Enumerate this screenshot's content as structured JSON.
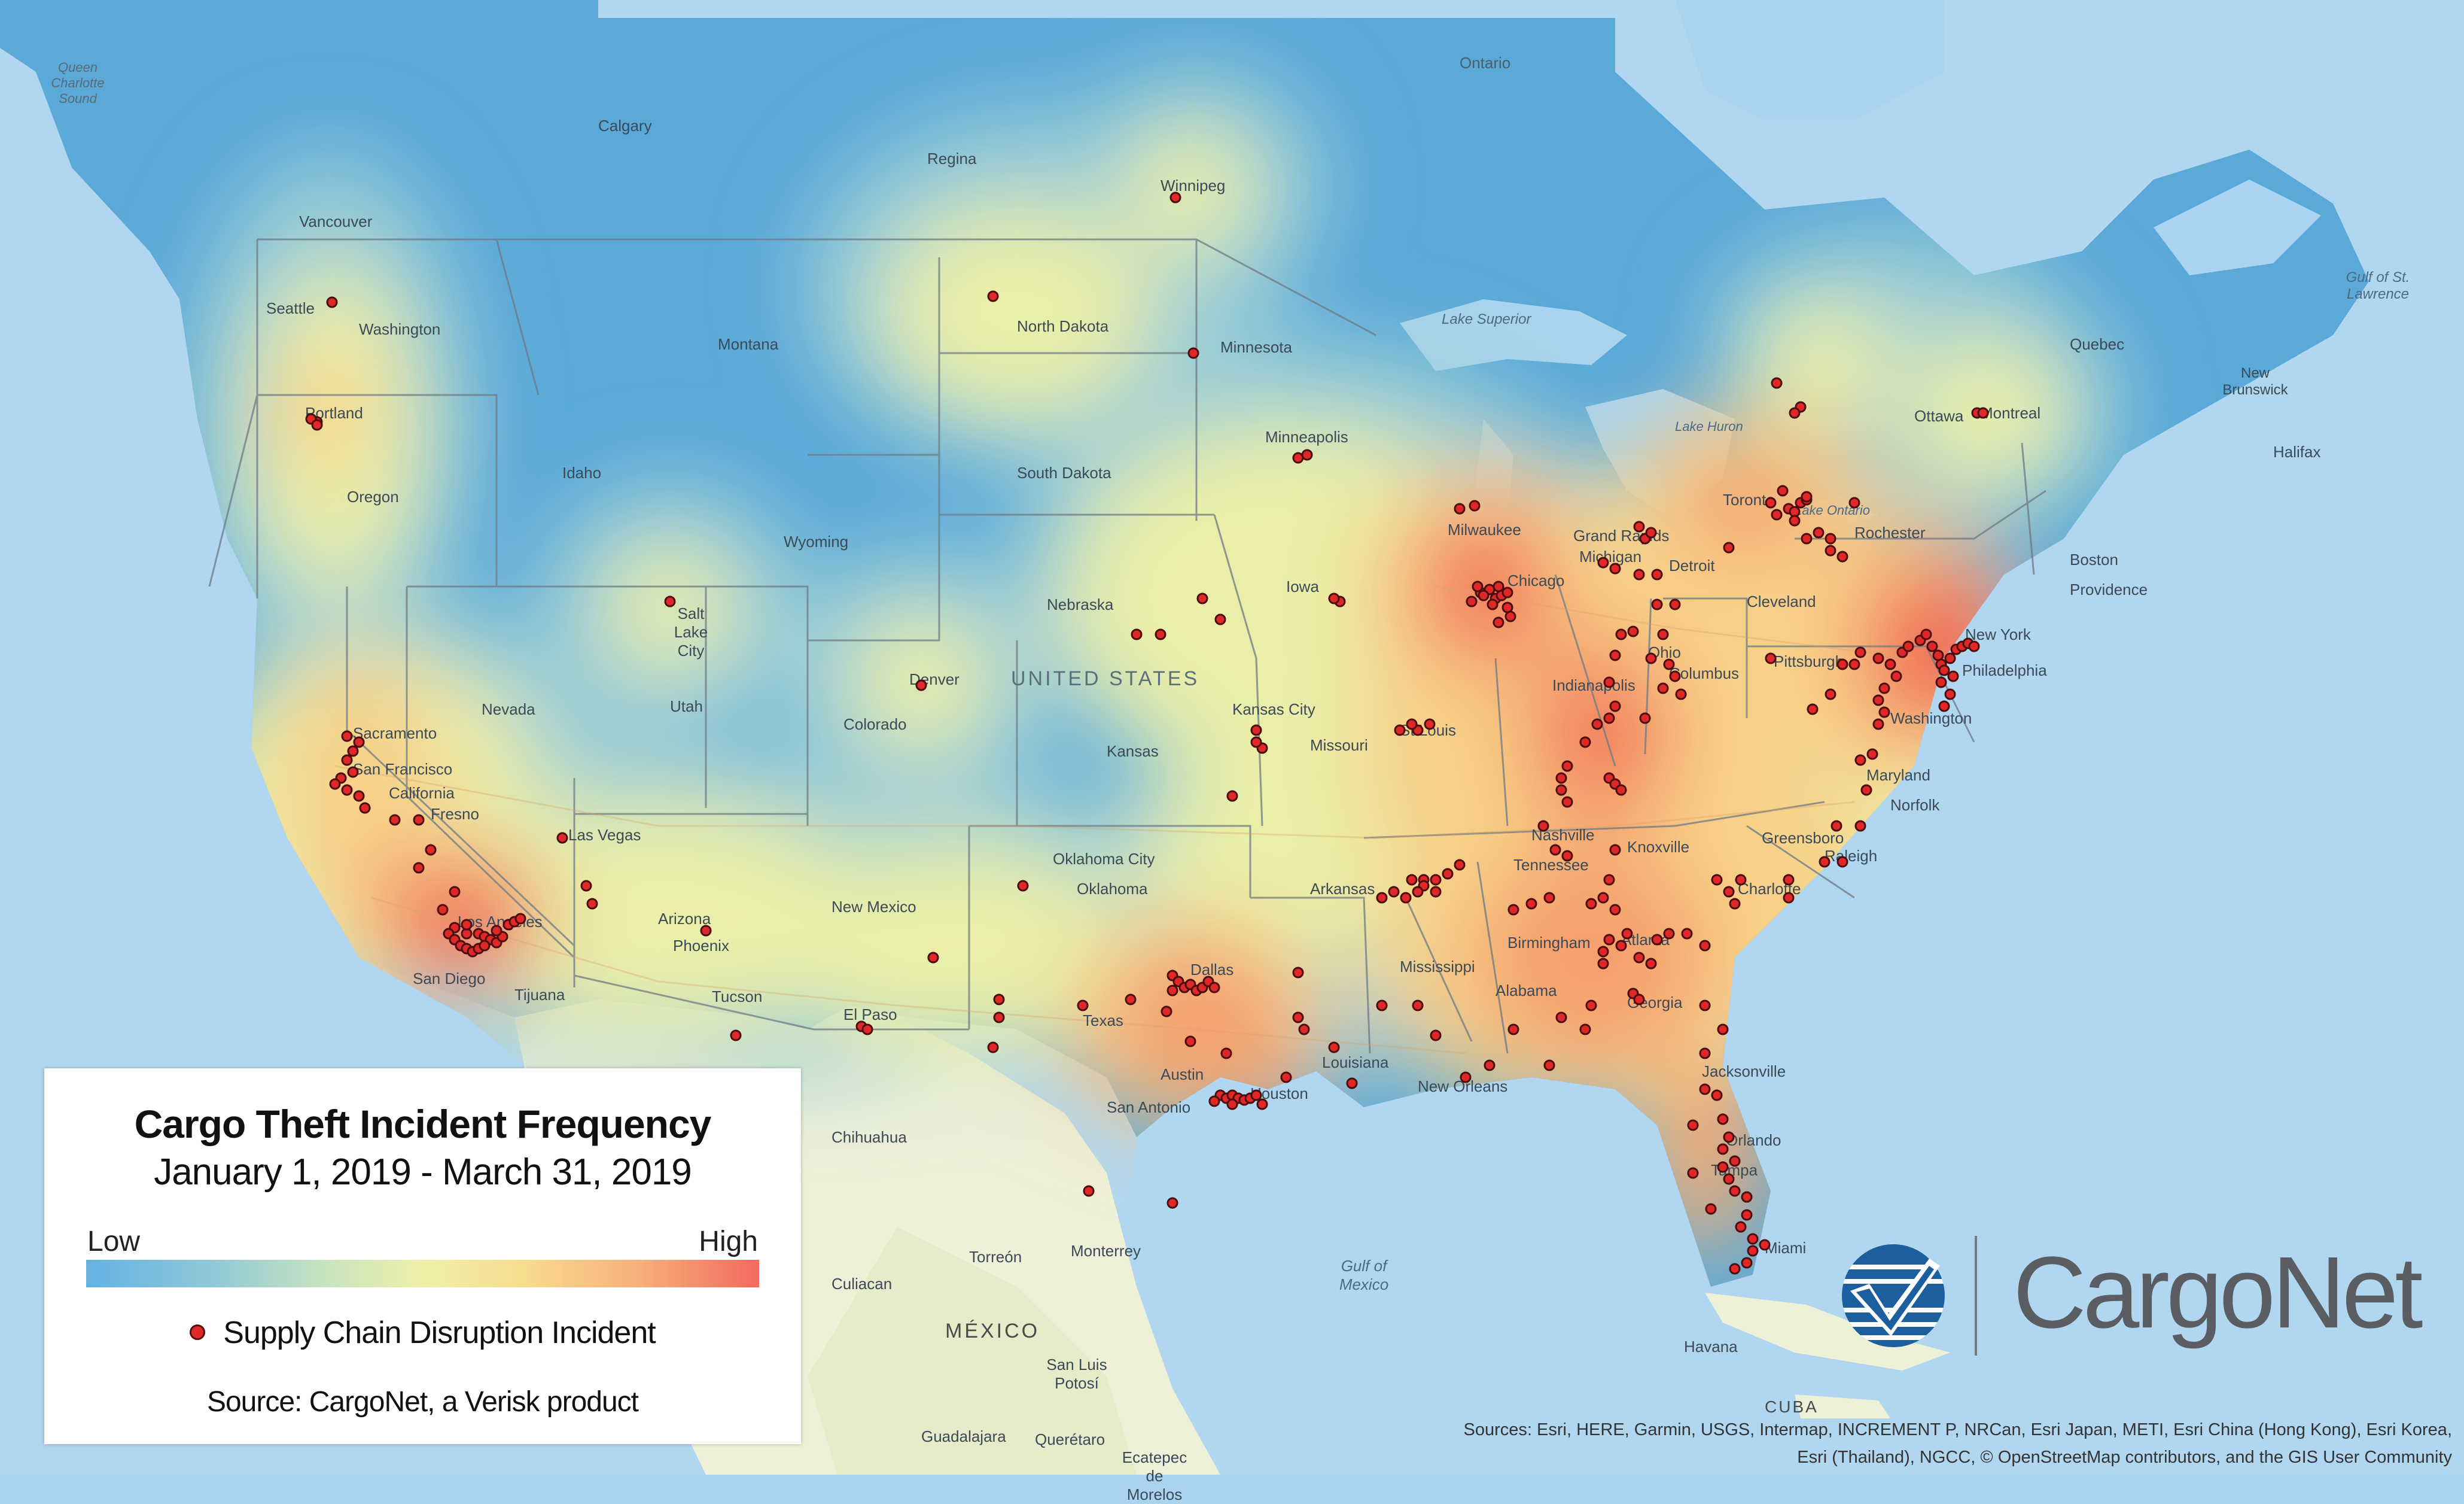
{
  "legend": {
    "title": "Cargo Theft  Incident Frequency",
    "subtitle": "January 1, 2019 - March 31, 2019",
    "low_label": "Low",
    "high_label": "High",
    "incident_label": "Supply Chain Disruption Incident",
    "source": "Source: CargoNet, a Verisk product"
  },
  "logo": {
    "text": "CargoNet"
  },
  "attribution": "Sources: Esri, HERE, Garmin, USGS, Intermap, INCREMENT P, NRCan, Esri Japan, METI, Esri China (Hong Kong), Esri Korea, Esri (Thailand), NGCC, © OpenStreetMap contributors, and the GIS User Community",
  "colors": {
    "ocean": "#a9d3ee",
    "land_low": "#5aa9d8",
    "heat_high": "#f05a4f",
    "incident_dot": "#e02828"
  },
  "map_labels": {
    "queen_charlotte": "Queen Charlotte Sound",
    "calgary": "Calgary",
    "regina": "Regina",
    "winnipeg": "Winnipeg",
    "ontario": "Ontario",
    "vancouver": "Vancouver",
    "seattle": "Seattle",
    "washington": "Washington",
    "portland": "Portland",
    "oregon": "Oregon",
    "montana": "Montana",
    "idaho": "Idaho",
    "wyoming": "Wyoming",
    "north_dakota": "North Dakota",
    "south_dakota": "South Dakota",
    "minnesota": "Minnesota",
    "minneapolis": "Minneapolis",
    "lake_superior": "Lake Superior",
    "lake_huron": "Lake Huron",
    "lake_ontario": "Lake Ontario",
    "ottawa": "Ottawa",
    "montreal": "Montreal",
    "quebec": "Quebec",
    "gulf_st_lawrence": "Gulf of St. Lawrence",
    "new_brunswick": "New Brunswick",
    "halifax": "Halifax",
    "toronto": "Toronto",
    "milwaukee": "Milwaukee",
    "grand_rapids": "Grand Rapids",
    "michigan": "Michigan",
    "detroit": "Detroit",
    "rochester": "Rochester",
    "boston": "Boston",
    "providence": "Providence",
    "chicago": "Chicago",
    "iowa": "Iowa",
    "nebraska": "Nebraska",
    "salt_lake": "Salt Lake City",
    "denver": "Denver",
    "colorado": "Colorado",
    "nevada": "Nevada",
    "utah": "Utah",
    "sacramento": "Sacramento",
    "san_francisco": "San Francisco",
    "california": "California",
    "fresno": "Fresno",
    "las_vegas": "Las Vegas",
    "los_angeles": "Los Angeles",
    "san_diego": "San Diego",
    "tijuana": "Tijuana",
    "arizona": "Arizona",
    "phoenix": "Phoenix",
    "tucson": "Tucson",
    "new_mexico": "New Mexico",
    "united_states": "UNITED STATES",
    "kansas": "Kansas",
    "kansas_city": "Kansas City",
    "missouri": "Missouri",
    "st_louis": "St Louis",
    "indianapolis": "Indianapolis",
    "ohio": "Ohio",
    "columbus": "Columbus",
    "cleveland": "Cleveland",
    "pittsburgh": "Pittsburgh",
    "new_york": "New York",
    "philadelphia": "Philadelphia",
    "washington_dc": "Washington",
    "maryland": "Maryland",
    "norfolk": "Norfolk",
    "greensboro": "Greensboro",
    "raleigh": "Raleigh",
    "charlotte": "Charlotte",
    "nashville": "Nashville",
    "tennessee": "Tennessee",
    "knoxville": "Knoxville",
    "oklahoma_city": "Oklahoma City",
    "oklahoma": "Oklahoma",
    "arkansas": "Arkansas",
    "mississippi": "Mississippi",
    "birmingham": "Birmingham",
    "alabama": "Alabama",
    "atlanta": "Atlanta",
    "georgia": "Georgia",
    "dallas": "Dallas",
    "texas": "Texas",
    "el_paso": "El Paso",
    "austin": "Austin",
    "houston": "Houston",
    "san_antonio": "San Antonio",
    "louisiana": "Louisiana",
    "new_orleans": "New Orleans",
    "jacksonville": "Jacksonville",
    "orlando": "Orlando",
    "tampa": "Tampa",
    "miami": "Miami",
    "chihuahua": "Chihuahua",
    "torreon": "Torreón",
    "monterrey": "Monterrey",
    "culiacan": "Culiacan",
    "mexico": "MÉXICO",
    "san_luis_potosi": "San Luis Potosí",
    "guadalajara": "Guadalajara",
    "queretaro": "Querétaro",
    "ecatepec": "Ecatepec de Morelos",
    "gulf_of_mexico": "Gulf of Mexico",
    "havana": "Havana",
    "cuba": "CUBA"
  }
}
